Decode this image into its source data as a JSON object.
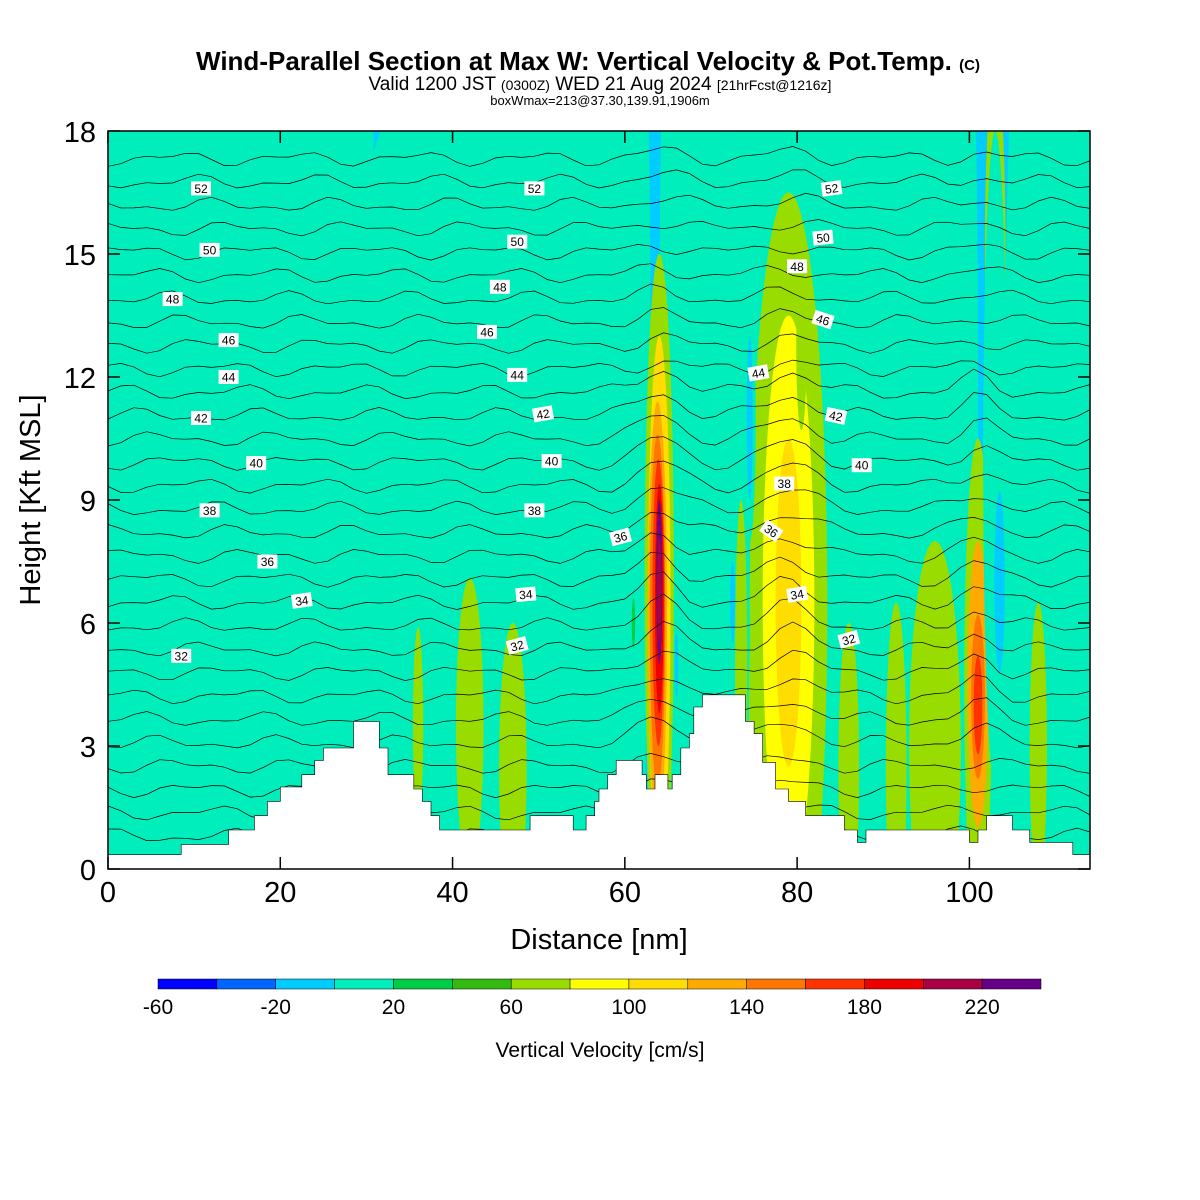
{
  "title": {
    "main": "Wind-Parallel Section at Max W: Vertical Velocity & Pot.Temp.",
    "main_suffix": "(C)",
    "valid_prefix": "Valid 1200 JST",
    "valid_utc": "(0300Z)",
    "valid_date": "WED 21 Aug 2024",
    "valid_fcst": "[21hrFcst@1216z]",
    "box_info": "boxWmax=213@37.30,139.91,1906m"
  },
  "colors": {
    "background_field": "#00ccff",
    "terrain": "#ffffff",
    "contour_line": "#000000"
  },
  "chart_data": {
    "type": "heatmap",
    "xlabel": "Distance [nm]",
    "ylabel": "Height [Kft MSL]",
    "xlim": [
      0,
      114
    ],
    "ylim": [
      0,
      18
    ],
    "x_ticks": [
      "0",
      "20",
      "40",
      "60",
      "80",
      "100"
    ],
    "x_tick_values": [
      0,
      20,
      40,
      60,
      80,
      100
    ],
    "y_ticks": [
      "0",
      "3",
      "6",
      "9",
      "12",
      "15",
      "18"
    ],
    "y_tick_values": [
      0,
      3,
      6,
      9,
      12,
      15,
      18
    ],
    "colorbar": {
      "title": "Vertical Velocity [cm/s]",
      "bins": [
        -60,
        -40,
        -20,
        0,
        20,
        40,
        60,
        80,
        100,
        120,
        140,
        160,
        180,
        200,
        220,
        240
      ],
      "colors": [
        "#0000ff",
        "#0066ff",
        "#00ccff",
        "#00eebb",
        "#00cc44",
        "#33bb11",
        "#99dd00",
        "#ffff00",
        "#ffdd00",
        "#ffaa00",
        "#ff7700",
        "#ff3300",
        "#ee0000",
        "#aa0044",
        "#660088"
      ],
      "tick_labels": [
        "-60",
        "-20",
        "20",
        "60",
        "100",
        "140",
        "180",
        "220"
      ],
      "tick_values": [
        -60,
        -20,
        20,
        60,
        100,
        140,
        180,
        220
      ]
    },
    "terrain_profile": [
      [
        0,
        0.35
      ],
      [
        8.5,
        0.35
      ],
      [
        8.5,
        0.6
      ],
      [
        14,
        0.6
      ],
      [
        14,
        0.95
      ],
      [
        17,
        0.95
      ],
      [
        17,
        1.3
      ],
      [
        18.5,
        1.3
      ],
      [
        18.5,
        1.65
      ],
      [
        20,
        1.65
      ],
      [
        20,
        2.0
      ],
      [
        22.5,
        2.0
      ],
      [
        22.5,
        2.3
      ],
      [
        24,
        2.3
      ],
      [
        24,
        2.65
      ],
      [
        25,
        2.65
      ],
      [
        25,
        2.95
      ],
      [
        28.5,
        2.95
      ],
      [
        28.5,
        3.6
      ],
      [
        31.5,
        3.6
      ],
      [
        31.5,
        2.95
      ],
      [
        32.5,
        2.95
      ],
      [
        32.5,
        2.3
      ],
      [
        35.5,
        2.3
      ],
      [
        35.5,
        1.95
      ],
      [
        36.5,
        1.95
      ],
      [
        36.5,
        1.65
      ],
      [
        37.5,
        1.65
      ],
      [
        37.5,
        1.3
      ],
      [
        38.5,
        1.3
      ],
      [
        38.5,
        0.95
      ],
      [
        49,
        0.95
      ],
      [
        49,
        1.3
      ],
      [
        54,
        1.3
      ],
      [
        54,
        0.95
      ],
      [
        55.5,
        0.95
      ],
      [
        55.5,
        1.3
      ],
      [
        56.5,
        1.3
      ],
      [
        56.5,
        1.65
      ],
      [
        57,
        1.65
      ],
      [
        57,
        1.95
      ],
      [
        58,
        1.95
      ],
      [
        58,
        2.3
      ],
      [
        59,
        2.3
      ],
      [
        59,
        2.65
      ],
      [
        62,
        2.65
      ],
      [
        62,
        2.3
      ],
      [
        62.5,
        2.3
      ],
      [
        62.5,
        1.95
      ],
      [
        63.5,
        1.95
      ],
      [
        63.5,
        2.3
      ],
      [
        65,
        2.3
      ],
      [
        65,
        1.95
      ],
      [
        65.5,
        1.95
      ],
      [
        65.5,
        2.3
      ],
      [
        66.5,
        2.3
      ],
      [
        66.5,
        2.95
      ],
      [
        67.5,
        2.95
      ],
      [
        67.5,
        3.3
      ],
      [
        68,
        3.3
      ],
      [
        68,
        3.95
      ],
      [
        69,
        3.95
      ],
      [
        69,
        4.25
      ],
      [
        74,
        4.25
      ],
      [
        74,
        3.6
      ],
      [
        75,
        3.6
      ],
      [
        75,
        3.3
      ],
      [
        76,
        3.3
      ],
      [
        76,
        2.6
      ],
      [
        77.5,
        2.6
      ],
      [
        77.5,
        1.95
      ],
      [
        79,
        1.95
      ],
      [
        79,
        1.65
      ],
      [
        81,
        1.65
      ],
      [
        81,
        1.3
      ],
      [
        85.5,
        1.3
      ],
      [
        85.5,
        0.95
      ],
      [
        87,
        0.95
      ],
      [
        87,
        0.65
      ],
      [
        88,
        0.65
      ],
      [
        88,
        0.95
      ],
      [
        100,
        0.95
      ],
      [
        100,
        0.65
      ],
      [
        101,
        0.65
      ],
      [
        101,
        0.95
      ],
      [
        102,
        0.95
      ],
      [
        102,
        1.3
      ],
      [
        105,
        1.3
      ],
      [
        105,
        0.95
      ],
      [
        107,
        0.95
      ],
      [
        107,
        0.65
      ],
      [
        112,
        0.65
      ],
      [
        112,
        0.35
      ],
      [
        114,
        0.35
      ]
    ],
    "theta_contours": {
      "levels": [
        32,
        34,
        36,
        38,
        40,
        42,
        44,
        46,
        48,
        50,
        52
      ],
      "labels": [
        {
          "text": "52",
          "x": 10.8,
          "y": 16.6,
          "angle": 0
        },
        {
          "text": "52",
          "x": 49.5,
          "y": 16.6,
          "angle": 0
        },
        {
          "text": "52",
          "x": 84,
          "y": 16.6,
          "angle": -8
        },
        {
          "text": "50",
          "x": 11.8,
          "y": 15.1,
          "angle": 0
        },
        {
          "text": "50",
          "x": 47.5,
          "y": 15.3,
          "angle": 0
        },
        {
          "text": "50",
          "x": 83,
          "y": 15.4,
          "angle": -6
        },
        {
          "text": "48",
          "x": 7.5,
          "y": 13.9,
          "angle": 0
        },
        {
          "text": "48",
          "x": 45.5,
          "y": 14.2,
          "angle": 0
        },
        {
          "text": "48",
          "x": 80,
          "y": 14.7,
          "angle": 0
        },
        {
          "text": "46",
          "x": 14,
          "y": 12.9,
          "angle": 0
        },
        {
          "text": "46",
          "x": 44,
          "y": 13.1,
          "angle": 0
        },
        {
          "text": "46",
          "x": 83,
          "y": 13.4,
          "angle": 18
        },
        {
          "text": "44",
          "x": 14,
          "y": 12,
          "angle": 0
        },
        {
          "text": "44",
          "x": 47.5,
          "y": 12.05,
          "angle": 0
        },
        {
          "text": "44",
          "x": 75.5,
          "y": 12.1,
          "angle": -10
        },
        {
          "text": "42",
          "x": 10.8,
          "y": 11,
          "angle": 0
        },
        {
          "text": "42",
          "x": 50.5,
          "y": 11.1,
          "angle": -10
        },
        {
          "text": "42",
          "x": 84.5,
          "y": 11.05,
          "angle": 12
        },
        {
          "text": "40",
          "x": 17.2,
          "y": 9.9,
          "angle": 0
        },
        {
          "text": "40",
          "x": 51.5,
          "y": 9.95,
          "angle": 0
        },
        {
          "text": "40",
          "x": 87.5,
          "y": 9.85,
          "angle": 0
        },
        {
          "text": "38",
          "x": 11.8,
          "y": 8.75,
          "angle": 0
        },
        {
          "text": "38",
          "x": 49.5,
          "y": 8.75,
          "angle": 0
        },
        {
          "text": "38",
          "x": 78.5,
          "y": 9.4,
          "angle": 0
        },
        {
          "text": "36",
          "x": 18.5,
          "y": 7.5,
          "angle": 0
        },
        {
          "text": "36",
          "x": 59.5,
          "y": 8.1,
          "angle": -15
        },
        {
          "text": "36",
          "x": 77,
          "y": 8.25,
          "angle": 35
        },
        {
          "text": "34",
          "x": 22.5,
          "y": 6.55,
          "angle": -8
        },
        {
          "text": "34",
          "x": 48.5,
          "y": 6.7,
          "angle": -5
        },
        {
          "text": "34",
          "x": 80,
          "y": 6.7,
          "angle": -10
        },
        {
          "text": "32",
          "x": 8.5,
          "y": 5.2,
          "angle": 0
        },
        {
          "text": "32",
          "x": 47.5,
          "y": 5.45,
          "angle": -15
        },
        {
          "text": "32",
          "x": 86,
          "y": 5.6,
          "angle": -15
        }
      ]
    }
  }
}
